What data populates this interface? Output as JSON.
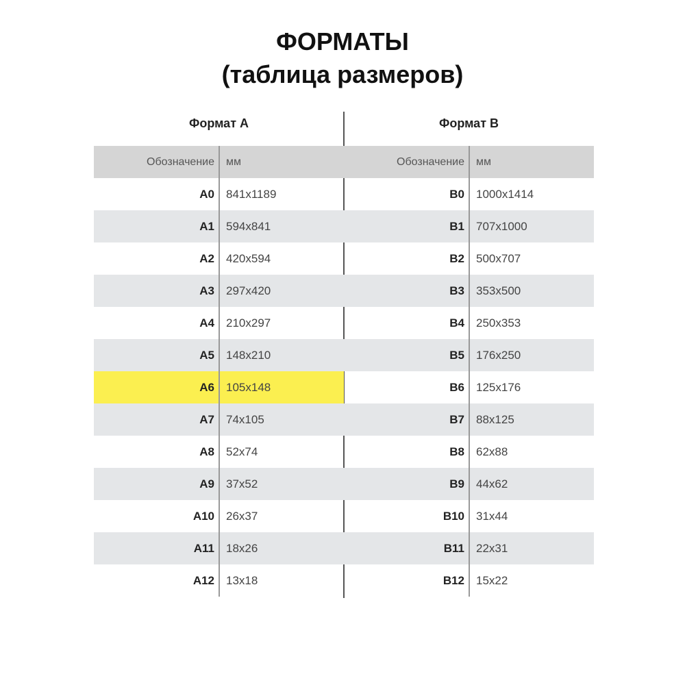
{
  "title": "ФОРМАТЫ",
  "subtitle": "(таблица размеров)",
  "colors": {
    "header": "#d5d5d5",
    "alt_row": "#e4e6e8",
    "highlight": "#fbef50"
  },
  "tables": [
    {
      "heading": "Формат А",
      "col1": "Обозначение",
      "col2": "мм",
      "highlighted": "A6",
      "rows": [
        [
          "A0",
          "841x1189"
        ],
        [
          "A1",
          "594x841"
        ],
        [
          "A2",
          "420x594"
        ],
        [
          "A3",
          "297x420"
        ],
        [
          "A4",
          "210x297"
        ],
        [
          "A5",
          "148x210"
        ],
        [
          "A6",
          "105x148"
        ],
        [
          "A7",
          "74x105"
        ],
        [
          "A8",
          "52x74"
        ],
        [
          "A9",
          "37x52"
        ],
        [
          "A10",
          "26x37"
        ],
        [
          "A11",
          "18x26"
        ],
        [
          "A12",
          "13x18"
        ]
      ]
    },
    {
      "heading": "Формат В",
      "col1": "Обозначение",
      "col2": "мм",
      "highlighted": "",
      "rows": [
        [
          "B0",
          "1000x1414"
        ],
        [
          "B1",
          "707x1000"
        ],
        [
          "B2",
          "500x707"
        ],
        [
          "B3",
          "353x500"
        ],
        [
          "B4",
          "250x353"
        ],
        [
          "B5",
          "176x250"
        ],
        [
          "B6",
          "125x176"
        ],
        [
          "B7",
          "88x125"
        ],
        [
          "B8",
          "62x88"
        ],
        [
          "B9",
          "44x62"
        ],
        [
          "B10",
          "31x44"
        ],
        [
          "B11",
          "22x31"
        ],
        [
          "B12",
          "15x22"
        ]
      ]
    }
  ]
}
